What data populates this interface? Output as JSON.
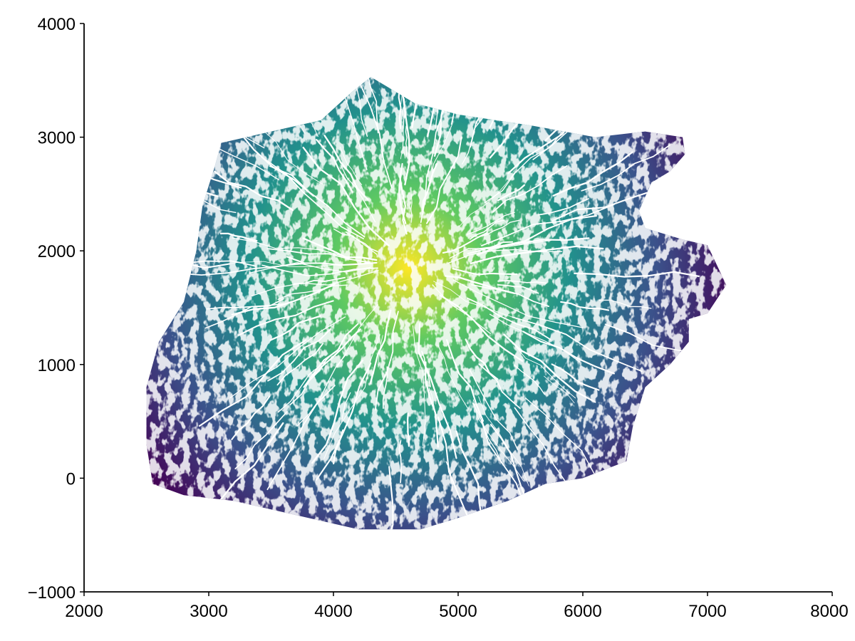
{
  "chart_data": {
    "type": "heatmap",
    "title": "",
    "xlabel": "",
    "ylabel": "",
    "xlim": [
      2000,
      8000
    ],
    "ylim": [
      -1000,
      4000
    ],
    "x_ticks": [
      {
        "value": 2000,
        "label": "2000"
      },
      {
        "value": 3000,
        "label": "3000"
      },
      {
        "value": 4000,
        "label": "4000"
      },
      {
        "value": 5000,
        "label": "5000"
      },
      {
        "value": 6000,
        "label": "6000"
      },
      {
        "value": 7000,
        "label": "7000"
      },
      {
        "value": 8000,
        "label": "8000"
      }
    ],
    "y_ticks": [
      {
        "value": -1000,
        "label": "−1000"
      },
      {
        "value": 0,
        "label": "0"
      },
      {
        "value": 1000,
        "label": "1000"
      },
      {
        "value": 2000,
        "label": "2000"
      },
      {
        "value": 3000,
        "label": "3000"
      },
      {
        "value": 4000,
        "label": "4000"
      }
    ],
    "grid": false,
    "colormap": "viridis",
    "colormap_stops": [
      "#440154",
      "#3b528b",
      "#21918c",
      "#5ec962",
      "#fde725"
    ],
    "value_peak": {
      "x": 4600,
      "y": 1850
    },
    "island_outline": [
      [
        4300,
        3530
      ],
      [
        4650,
        3300
      ],
      [
        5000,
        3200
      ],
      [
        5600,
        3100
      ],
      [
        6100,
        3000
      ],
      [
        6500,
        3050
      ],
      [
        6800,
        3000
      ],
      [
        6820,
        2850
      ],
      [
        6700,
        2700
      ],
      [
        6550,
        2600
      ],
      [
        6450,
        2350
      ],
      [
        6500,
        2200
      ],
      [
        6800,
        2100
      ],
      [
        7000,
        2050
      ],
      [
        7150,
        1700
      ],
      [
        7000,
        1450
      ],
      [
        6850,
        1400
      ],
      [
        6850,
        1200
      ],
      [
        6700,
        1000
      ],
      [
        6500,
        800
      ],
      [
        6400,
        450
      ],
      [
        6350,
        150
      ],
      [
        6000,
        0
      ],
      [
        5700,
        -50
      ],
      [
        5400,
        -200
      ],
      [
        5000,
        -350
      ],
      [
        4700,
        -450
      ],
      [
        4200,
        -450
      ],
      [
        3600,
        -300
      ],
      [
        3200,
        -200
      ],
      [
        2800,
        -150
      ],
      [
        2550,
        -50
      ],
      [
        2500,
        300
      ],
      [
        2500,
        800
      ],
      [
        2600,
        1200
      ],
      [
        2800,
        1550
      ],
      [
        2900,
        2000
      ],
      [
        2950,
        2400
      ],
      [
        3050,
        2750
      ],
      [
        3100,
        2950
      ],
      [
        3500,
        3050
      ],
      [
        3900,
        3150
      ],
      [
        4150,
        3400
      ]
    ]
  }
}
